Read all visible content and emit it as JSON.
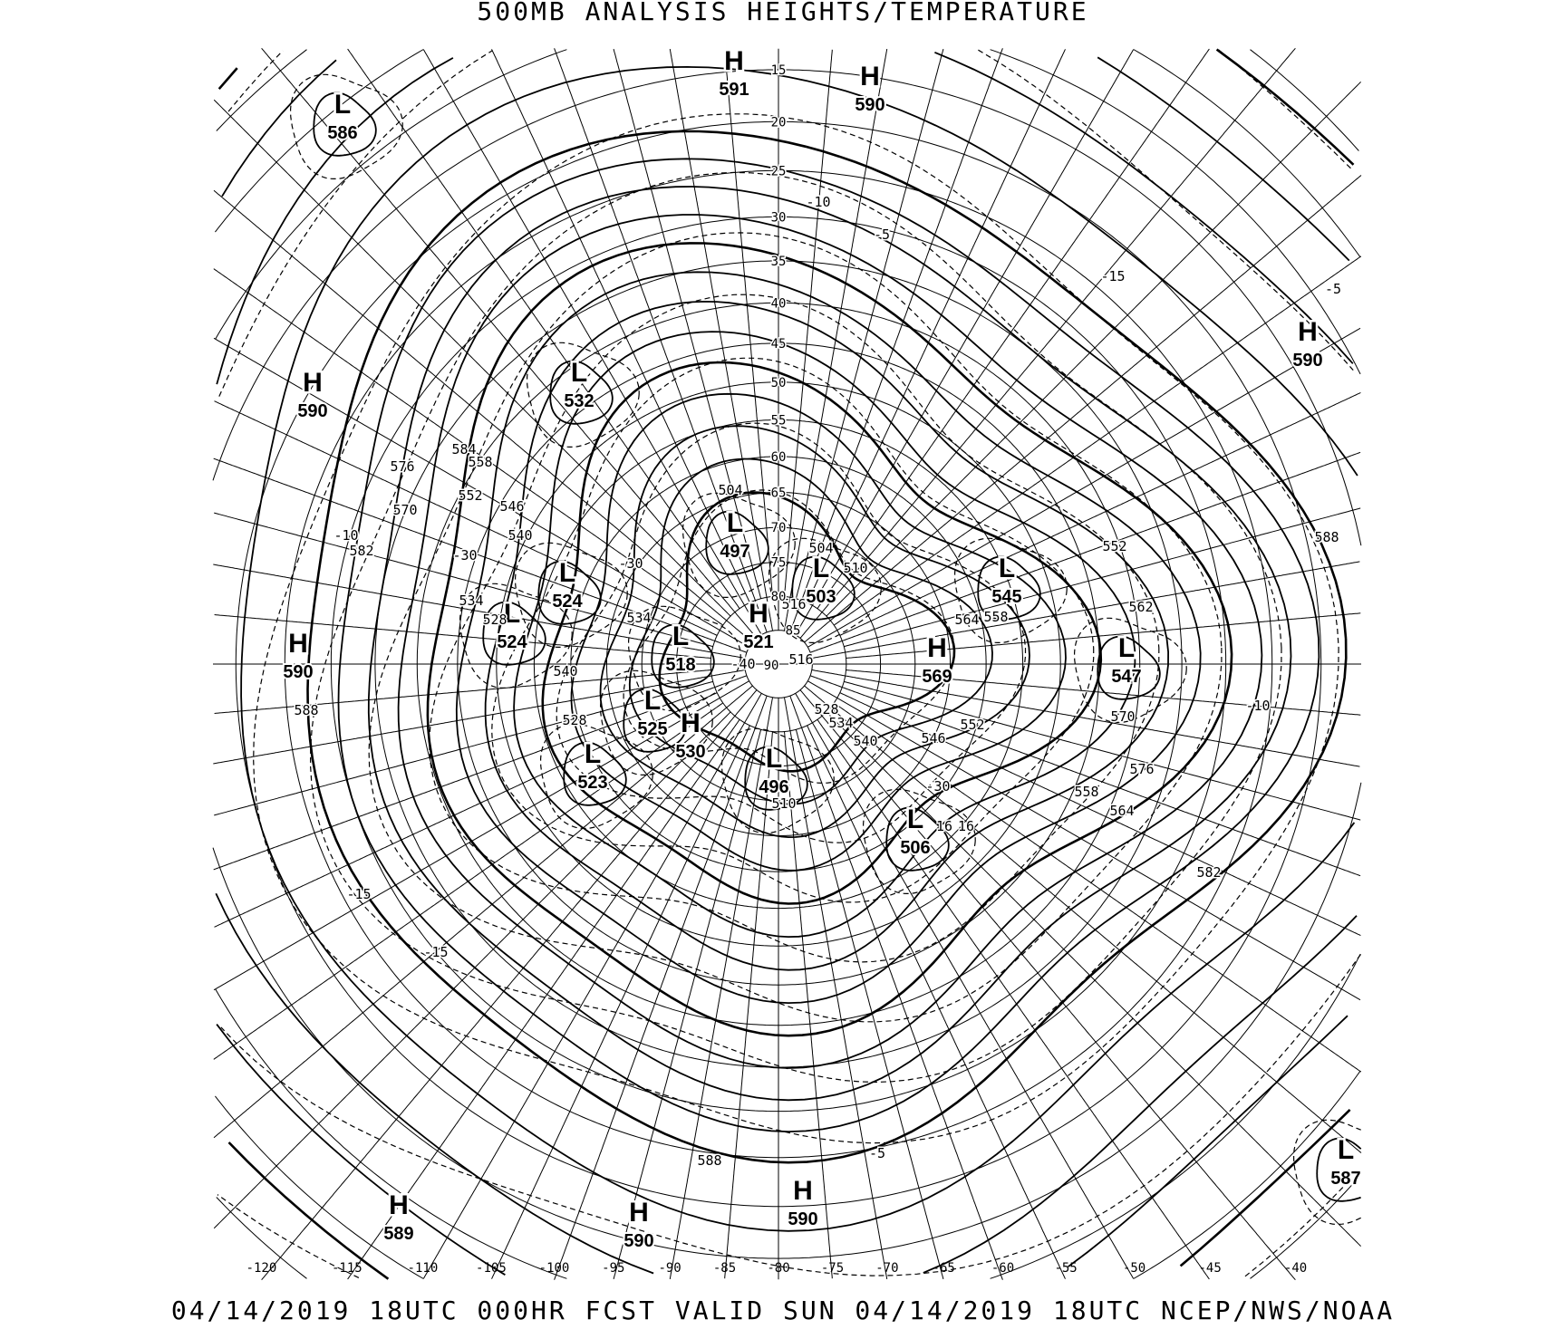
{
  "header": {
    "title": "500MB ANALYSIS  HEIGHTS/TEMPERATURE"
  },
  "footer": {
    "text": "04/14/2019 18UTC 000HR FCST VALID SUN 04/14/2019 18UTC  NCEP/NWS/NOAA"
  },
  "map": {
    "projection": "polar stereographic",
    "line_color": "#000000",
    "background": "#ffffff",
    "latitude_labels": [
      "15",
      "20",
      "25",
      "30",
      "35",
      "40",
      "45",
      "50",
      "55",
      "60",
      "65",
      "70",
      "75",
      "80",
      "85",
      "90"
    ],
    "longitude_labels": [
      "-120",
      "-115",
      "-110",
      "-105",
      "-100",
      "-95",
      "-90",
      "-85",
      "-80",
      "-75",
      "-70",
      "-65",
      "-60",
      "-55",
      "-50",
      "-45",
      "-40"
    ],
    "pressure_centers": [
      {
        "type": "L",
        "value": "586"
      },
      {
        "type": "H",
        "value": "591"
      },
      {
        "type": "H",
        "value": "590"
      },
      {
        "type": "H",
        "value": "590"
      },
      {
        "type": "H",
        "value": "590"
      },
      {
        "type": "L",
        "value": "532"
      },
      {
        "type": "L",
        "value": "497"
      },
      {
        "type": "L",
        "value": "503"
      },
      {
        "type": "L",
        "value": "545"
      },
      {
        "type": "L",
        "value": "524"
      },
      {
        "type": "L",
        "value": "524"
      },
      {
        "type": "H",
        "value": "521"
      },
      {
        "type": "L",
        "value": "518"
      },
      {
        "type": "H",
        "value": "569"
      },
      {
        "type": "L",
        "value": "547"
      },
      {
        "type": "H",
        "value": "590"
      },
      {
        "type": "L",
        "value": "525"
      },
      {
        "type": "H",
        "value": "530"
      },
      {
        "type": "L",
        "value": "523"
      },
      {
        "type": "L",
        "value": "496"
      },
      {
        "type": "L",
        "value": "506"
      },
      {
        "type": "L",
        "value": "587"
      },
      {
        "type": "H",
        "value": "589"
      },
      {
        "type": "H",
        "value": "590"
      },
      {
        "type": "H",
        "value": "590"
      }
    ],
    "contour_labels": [
      "584",
      "558",
      "576",
      "552",
      "546",
      "570",
      "540",
      "582",
      "534",
      "528",
      "540",
      "588",
      "528",
      "534",
      "516",
      "516",
      "504",
      "504",
      "510",
      "564",
      "558",
      "552",
      "546",
      "540",
      "534",
      "528",
      "510",
      "552",
      "562",
      "570",
      "576",
      "558",
      "564",
      "582",
      "588",
      "588"
    ],
    "temperature_labels": [
      "-10",
      "-5",
      "-15",
      "-5",
      "-10",
      "-15",
      "-15",
      "-10",
      "-5",
      "-30",
      "-30",
      "-40",
      "-30",
      "16",
      "16"
    ]
  }
}
